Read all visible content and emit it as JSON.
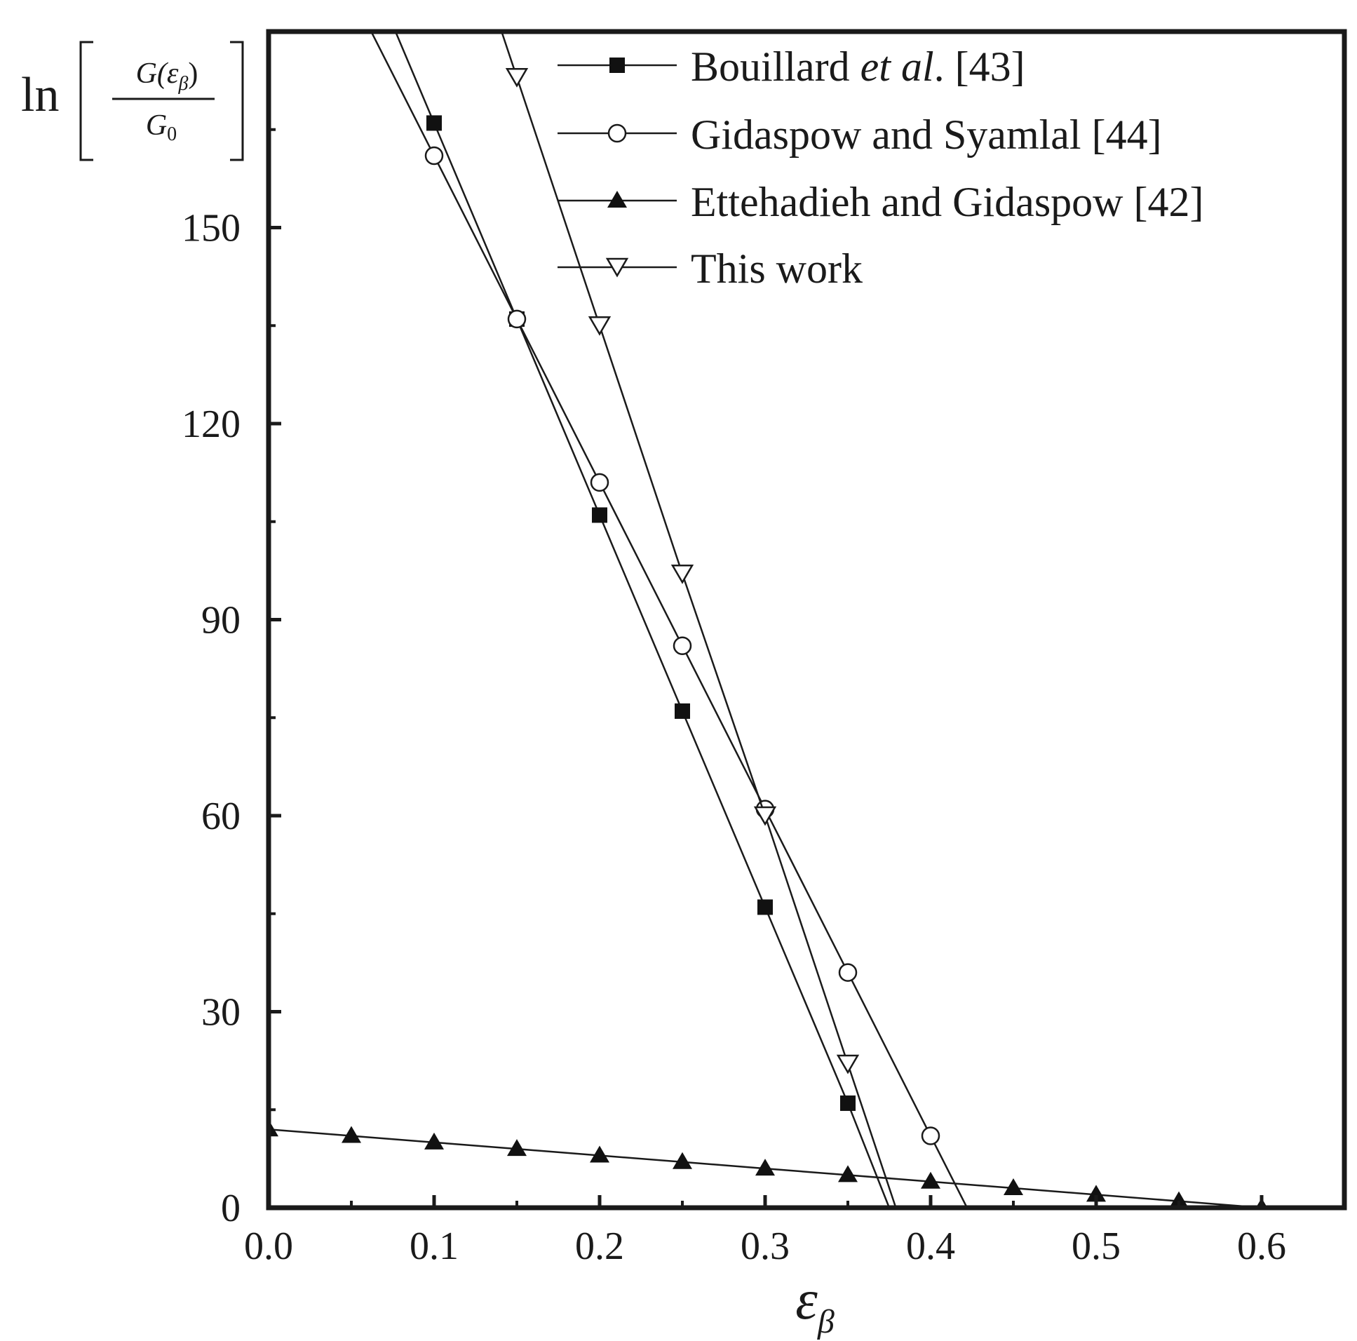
{
  "chart_data": {
    "type": "line",
    "xlabel": "ε",
    "xlabel_sub": "β",
    "ylabel": {
      "prefix": "ln",
      "numerator": "G(ε",
      "numerator_sub": "β",
      "numerator_close": ")",
      "denominator": "G",
      "denominator_sub": "0"
    },
    "xlim": [
      0.0,
      0.65
    ],
    "ylim": [
      0,
      180
    ],
    "xticks": [
      "0.0",
      "0.1",
      "0.2",
      "0.3",
      "0.4",
      "0.5",
      "0.6"
    ],
    "yticks": [
      "0",
      "30",
      "60",
      "90",
      "120",
      "150"
    ],
    "grid": false,
    "legend_position": "top-right",
    "series": [
      {
        "name": "Bouillard ",
        "name_italic": "et al",
        "name_tail": ". [43]",
        "marker": "square-filled",
        "x": [
          0.1,
          0.15,
          0.2,
          0.25,
          0.3,
          0.35
        ],
        "y": [
          166,
          136,
          106,
          76,
          46,
          16
        ],
        "line_to_zero_x": 0.375
      },
      {
        "name": "Gidaspow and Syamlal [44]",
        "marker": "circle-open",
        "x": [
          0.1,
          0.15,
          0.2,
          0.25,
          0.3,
          0.35,
          0.4
        ],
        "y": [
          161,
          136,
          111,
          86,
          61,
          36,
          11
        ],
        "line_to_zero_x": 0.422
      },
      {
        "name": "Ettehadieh and Gidaspow [42]",
        "marker": "triangle-up-filled",
        "x": [
          0.0,
          0.05,
          0.1,
          0.15,
          0.2,
          0.25,
          0.3,
          0.35,
          0.4,
          0.45,
          0.5,
          0.55,
          0.6
        ],
        "y": [
          12,
          11,
          10,
          9,
          8,
          7,
          6,
          5,
          4,
          3,
          2,
          1,
          0
        ]
      },
      {
        "name": "This work",
        "marker": "triangle-down-open",
        "x": [
          0.15,
          0.2,
          0.25,
          0.3,
          0.35
        ],
        "y": [
          173,
          135,
          97,
          60,
          22
        ],
        "line_to_zero_x": 0.379
      }
    ]
  }
}
